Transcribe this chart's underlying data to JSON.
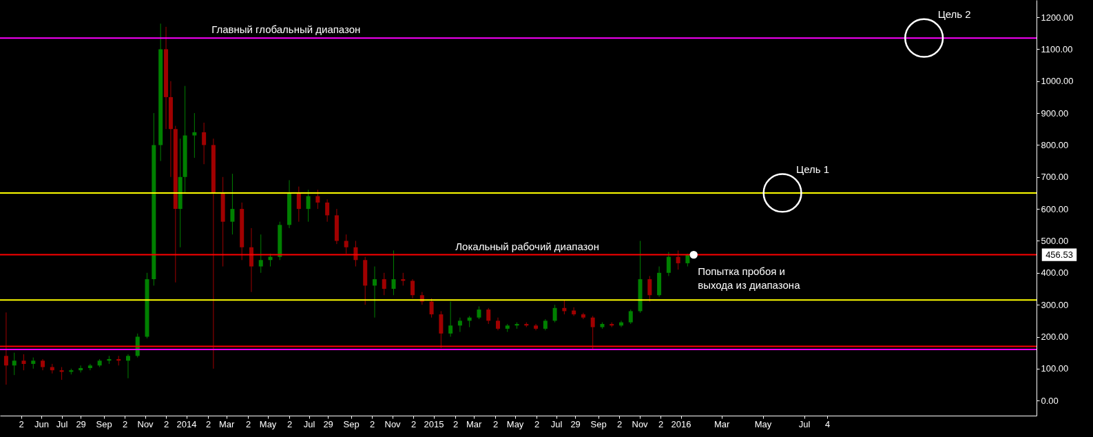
{
  "chart_data": {
    "type": "candlestick",
    "x": [
      "2013-04-10",
      "2013-04-22",
      "2013-05-06",
      "2013-05-20",
      "2013-06-03",
      "2013-06-17",
      "2013-07-01",
      "2013-07-15",
      "2013-07-29",
      "2013-08-12",
      "2013-08-26",
      "2013-09-09",
      "2013-09-23",
      "2013-10-07",
      "2013-10-21",
      "2013-11-04",
      "2013-11-14",
      "2013-11-24",
      "2013-12-02",
      "2013-12-09",
      "2013-12-16",
      "2013-12-23",
      "2013-12-30",
      "2014-01-13",
      "2014-01-27",
      "2014-02-10",
      "2014-02-24",
      "2014-03-10",
      "2014-03-24",
      "2014-04-07",
      "2014-04-21",
      "2014-05-05",
      "2014-05-19",
      "2014-06-02",
      "2014-06-16",
      "2014-06-30",
      "2014-07-14",
      "2014-07-28",
      "2014-08-11",
      "2014-08-25",
      "2014-09-08",
      "2014-09-22",
      "2014-10-06",
      "2014-10-20",
      "2014-11-03",
      "2014-11-17",
      "2014-12-01",
      "2014-12-15",
      "2014-12-29",
      "2015-01-12",
      "2015-01-26",
      "2015-02-09",
      "2015-02-23",
      "2015-03-09",
      "2015-03-23",
      "2015-04-06",
      "2015-04-20",
      "2015-05-04",
      "2015-05-18",
      "2015-06-01",
      "2015-06-15",
      "2015-06-29",
      "2015-07-13",
      "2015-07-27",
      "2015-08-10",
      "2015-08-24",
      "2015-09-07",
      "2015-09-21",
      "2015-10-05",
      "2015-10-19",
      "2015-11-02",
      "2015-11-16",
      "2015-11-30",
      "2015-12-14",
      "2015-12-28",
      "2016-01-11"
    ],
    "ohlc": [
      [
        140,
        276,
        50,
        110
      ],
      [
        110,
        150,
        80,
        125
      ],
      [
        125,
        145,
        95,
        115
      ],
      [
        115,
        135,
        100,
        125
      ],
      [
        125,
        130,
        95,
        105
      ],
      [
        105,
        115,
        85,
        95
      ],
      [
        95,
        105,
        65,
        90
      ],
      [
        90,
        100,
        82,
        95
      ],
      [
        95,
        110,
        88,
        102
      ],
      [
        102,
        115,
        95,
        110
      ],
      [
        110,
        130,
        105,
        125
      ],
      [
        125,
        140,
        115,
        130
      ],
      [
        130,
        140,
        110,
        125
      ],
      [
        125,
        145,
        70,
        140
      ],
      [
        140,
        210,
        135,
        200
      ],
      [
        200,
        400,
        195,
        380
      ],
      [
        380,
        900,
        360,
        800
      ],
      [
        800,
        1180,
        750,
        1100
      ],
      [
        1100,
        1170,
        850,
        950
      ],
      [
        950,
        1000,
        700,
        850
      ],
      [
        850,
        860,
        370,
        600
      ],
      [
        600,
        820,
        480,
        700
      ],
      [
        700,
        985,
        650,
        830
      ],
      [
        830,
        900,
        760,
        840
      ],
      [
        840,
        870,
        740,
        800
      ],
      [
        800,
        820,
        100,
        650
      ],
      [
        650,
        700,
        420,
        560
      ],
      [
        560,
        710,
        520,
        600
      ],
      [
        600,
        620,
        440,
        480
      ],
      [
        480,
        540,
        340,
        420
      ],
      [
        420,
        520,
        400,
        440
      ],
      [
        440,
        460,
        420,
        450
      ],
      [
        450,
        560,
        440,
        550
      ],
      [
        550,
        690,
        540,
        650
      ],
      [
        650,
        670,
        560,
        600
      ],
      [
        600,
        660,
        560,
        640
      ],
      [
        640,
        660,
        600,
        620
      ],
      [
        620,
        630,
        560,
        580
      ],
      [
        580,
        600,
        490,
        500
      ],
      [
        500,
        520,
        460,
        480
      ],
      [
        480,
        500,
        420,
        440
      ],
      [
        440,
        450,
        300,
        360
      ],
      [
        360,
        420,
        260,
        380
      ],
      [
        380,
        400,
        330,
        350
      ],
      [
        350,
        470,
        330,
        380
      ],
      [
        380,
        400,
        360,
        375
      ],
      [
        375,
        380,
        320,
        330
      ],
      [
        330,
        340,
        300,
        310
      ],
      [
        310,
        320,
        260,
        270
      ],
      [
        270,
        280,
        165,
        210
      ],
      [
        210,
        310,
        200,
        235
      ],
      [
        235,
        260,
        215,
        250
      ],
      [
        250,
        265,
        230,
        260
      ],
      [
        260,
        295,
        255,
        285
      ],
      [
        285,
        290,
        240,
        250
      ],
      [
        250,
        260,
        220,
        225
      ],
      [
        225,
        240,
        215,
        235
      ],
      [
        235,
        245,
        225,
        240
      ],
      [
        240,
        245,
        230,
        235
      ],
      [
        235,
        240,
        220,
        225
      ],
      [
        225,
        255,
        220,
        250
      ],
      [
        250,
        300,
        245,
        290
      ],
      [
        290,
        315,
        270,
        280
      ],
      [
        282,
        292,
        265,
        270
      ],
      [
        270,
        275,
        255,
        260
      ],
      [
        260,
        265,
        160,
        230
      ],
      [
        230,
        245,
        225,
        240
      ],
      [
        240,
        245,
        230,
        235
      ],
      [
        235,
        250,
        230,
        245
      ],
      [
        245,
        285,
        240,
        280
      ],
      [
        280,
        500,
        275,
        380
      ],
      [
        380,
        390,
        310,
        330
      ],
      [
        330,
        420,
        325,
        400
      ],
      [
        400,
        465,
        390,
        450
      ],
      [
        450,
        470,
        410,
        430
      ],
      [
        430,
        460,
        420,
        456.53
      ]
    ],
    "colors": [
      "#a00000",
      "#008000",
      "#a00000",
      "#008000",
      "#a00000",
      "#a00000",
      "#a00000",
      "#008000",
      "#008000",
      "#008000",
      "#008000",
      "#008000",
      "#a00000",
      "#008000",
      "#008000",
      "#008000",
      "#008000",
      "#008000",
      "#a00000",
      "#a00000",
      "#a00000",
      "#008000",
      "#008000",
      "#008000",
      "#a00000",
      "#a00000",
      "#a00000",
      "#008000",
      "#a00000",
      "#a00000",
      "#008000",
      "#008000",
      "#008000",
      "#008000",
      "#a00000",
      "#008000",
      "#a00000",
      "#a00000",
      "#a00000",
      "#a00000",
      "#a00000",
      "#a00000",
      "#008000",
      "#a00000",
      "#008000",
      "#a00000",
      "#a00000",
      "#a00000",
      "#a00000",
      "#a00000",
      "#008000",
      "#008000",
      "#008000",
      "#008000",
      "#a00000",
      "#a00000",
      "#008000",
      "#008000",
      "#a00000",
      "#a00000",
      "#008000",
      "#008000",
      "#a00000",
      "#a00000",
      "#a00000",
      "#a00000",
      "#008000",
      "#a00000",
      "#008000",
      "#008000",
      "#008000",
      "#a00000",
      "#008000",
      "#008000",
      "#a00000",
      "#008000"
    ],
    "xlim": [
      "2013-04-06",
      "2017-06-04"
    ],
    "xticks": [
      {
        "value": "2013-05-02",
        "label": "2"
      },
      {
        "value": "2013-06-01",
        "label": "Jun"
      },
      {
        "value": "2013-07-01",
        "label": "Jul"
      },
      {
        "value": "2013-07-29",
        "label": "29"
      },
      {
        "value": "2013-09-01",
        "label": "Sep"
      },
      {
        "value": "2013-10-02",
        "label": "2"
      },
      {
        "value": "2013-11-01",
        "label": "Nov"
      },
      {
        "value": "2013-12-02",
        "label": "2"
      },
      {
        "value": "2014-01-01",
        "label": "2014"
      },
      {
        "value": "2014-02-02",
        "label": "2"
      },
      {
        "value": "2014-03-01",
        "label": "Mar"
      },
      {
        "value": "2014-04-02",
        "label": "2"
      },
      {
        "value": "2014-05-01",
        "label": "May"
      },
      {
        "value": "2014-06-02",
        "label": "2"
      },
      {
        "value": "2014-07-01",
        "label": "Jul"
      },
      {
        "value": "2014-07-29",
        "label": "29"
      },
      {
        "value": "2014-09-01",
        "label": "Sep"
      },
      {
        "value": "2014-10-02",
        "label": "2"
      },
      {
        "value": "2014-11-01",
        "label": "Nov"
      },
      {
        "value": "2014-12-02",
        "label": "2"
      },
      {
        "value": "2015-01-01",
        "label": "2015"
      },
      {
        "value": "2015-02-02",
        "label": "2"
      },
      {
        "value": "2015-03-01",
        "label": "Mar"
      },
      {
        "value": "2015-04-02",
        "label": "2"
      },
      {
        "value": "2015-05-01",
        "label": "May"
      },
      {
        "value": "2015-06-02",
        "label": "2"
      },
      {
        "value": "2015-07-01",
        "label": "Jul"
      },
      {
        "value": "2015-07-29",
        "label": "29"
      },
      {
        "value": "2015-09-01",
        "label": "Sep"
      },
      {
        "value": "2015-10-02",
        "label": "2"
      },
      {
        "value": "2015-11-01",
        "label": "Nov"
      },
      {
        "value": "2015-12-02",
        "label": "2"
      },
      {
        "value": "2016-01-01",
        "label": "2016"
      },
      {
        "value": "2016-03-01",
        "label": "Mar"
      },
      {
        "value": "2016-05-01",
        "label": "May"
      },
      {
        "value": "2016-07-01",
        "label": "Jul"
      },
      {
        "value": "2016-08-04",
        "label": "4"
      }
    ],
    "ylim": [
      -47,
      1254
    ],
    "yticks": [
      {
        "value": 0,
        "label": "0.00"
      },
      {
        "value": 100,
        "label": "100.00"
      },
      {
        "value": 200,
        "label": "200.00"
      },
      {
        "value": 300,
        "label": "300.00"
      },
      {
        "value": 400,
        "label": "400.00"
      },
      {
        "value": 500,
        "label": "500.00"
      },
      {
        "value": 600,
        "label": "600.00"
      },
      {
        "value": 700,
        "label": "700.00"
      },
      {
        "value": 800,
        "label": "800.00"
      },
      {
        "value": 900,
        "label": "900.00"
      },
      {
        "value": 1000,
        "label": "1000.00"
      },
      {
        "value": 1100,
        "label": "1100.00"
      },
      {
        "value": 1200,
        "label": "1200.00"
      }
    ],
    "ref_lines": [
      {
        "axis": "y",
        "value": 1135,
        "color": "#ff00ff"
      },
      {
        "axis": "y",
        "value": 650,
        "color": "#ffff00"
      },
      {
        "axis": "y",
        "value": 456.53,
        "label": "456.53",
        "color": "#ff0000"
      },
      {
        "axis": "y",
        "value": 315,
        "color": "#ffff00"
      },
      {
        "axis": "y",
        "value": 170,
        "color": "#ff0000"
      },
      {
        "axis": "y",
        "value": 160,
        "color": "#ff00ff"
      }
    ],
    "annotations": [
      {
        "text": "Главный глобальный диапазон",
        "x": "2014-01-26",
        "y": 1135
      },
      {
        "text": "Локальный рабочий диапазон",
        "x": "2015-01-21",
        "y": 456.53
      },
      {
        "text": "Цель 1",
        "x": "2016-05-30",
        "y": 650
      },
      {
        "text": "Цель 2",
        "x": "2016-12-25",
        "y": 1135
      },
      {
        "text": "Попытка пробоя и\nвыхода из диапазона",
        "x": "2016-01-20",
        "y": 456.53
      }
    ]
  }
}
